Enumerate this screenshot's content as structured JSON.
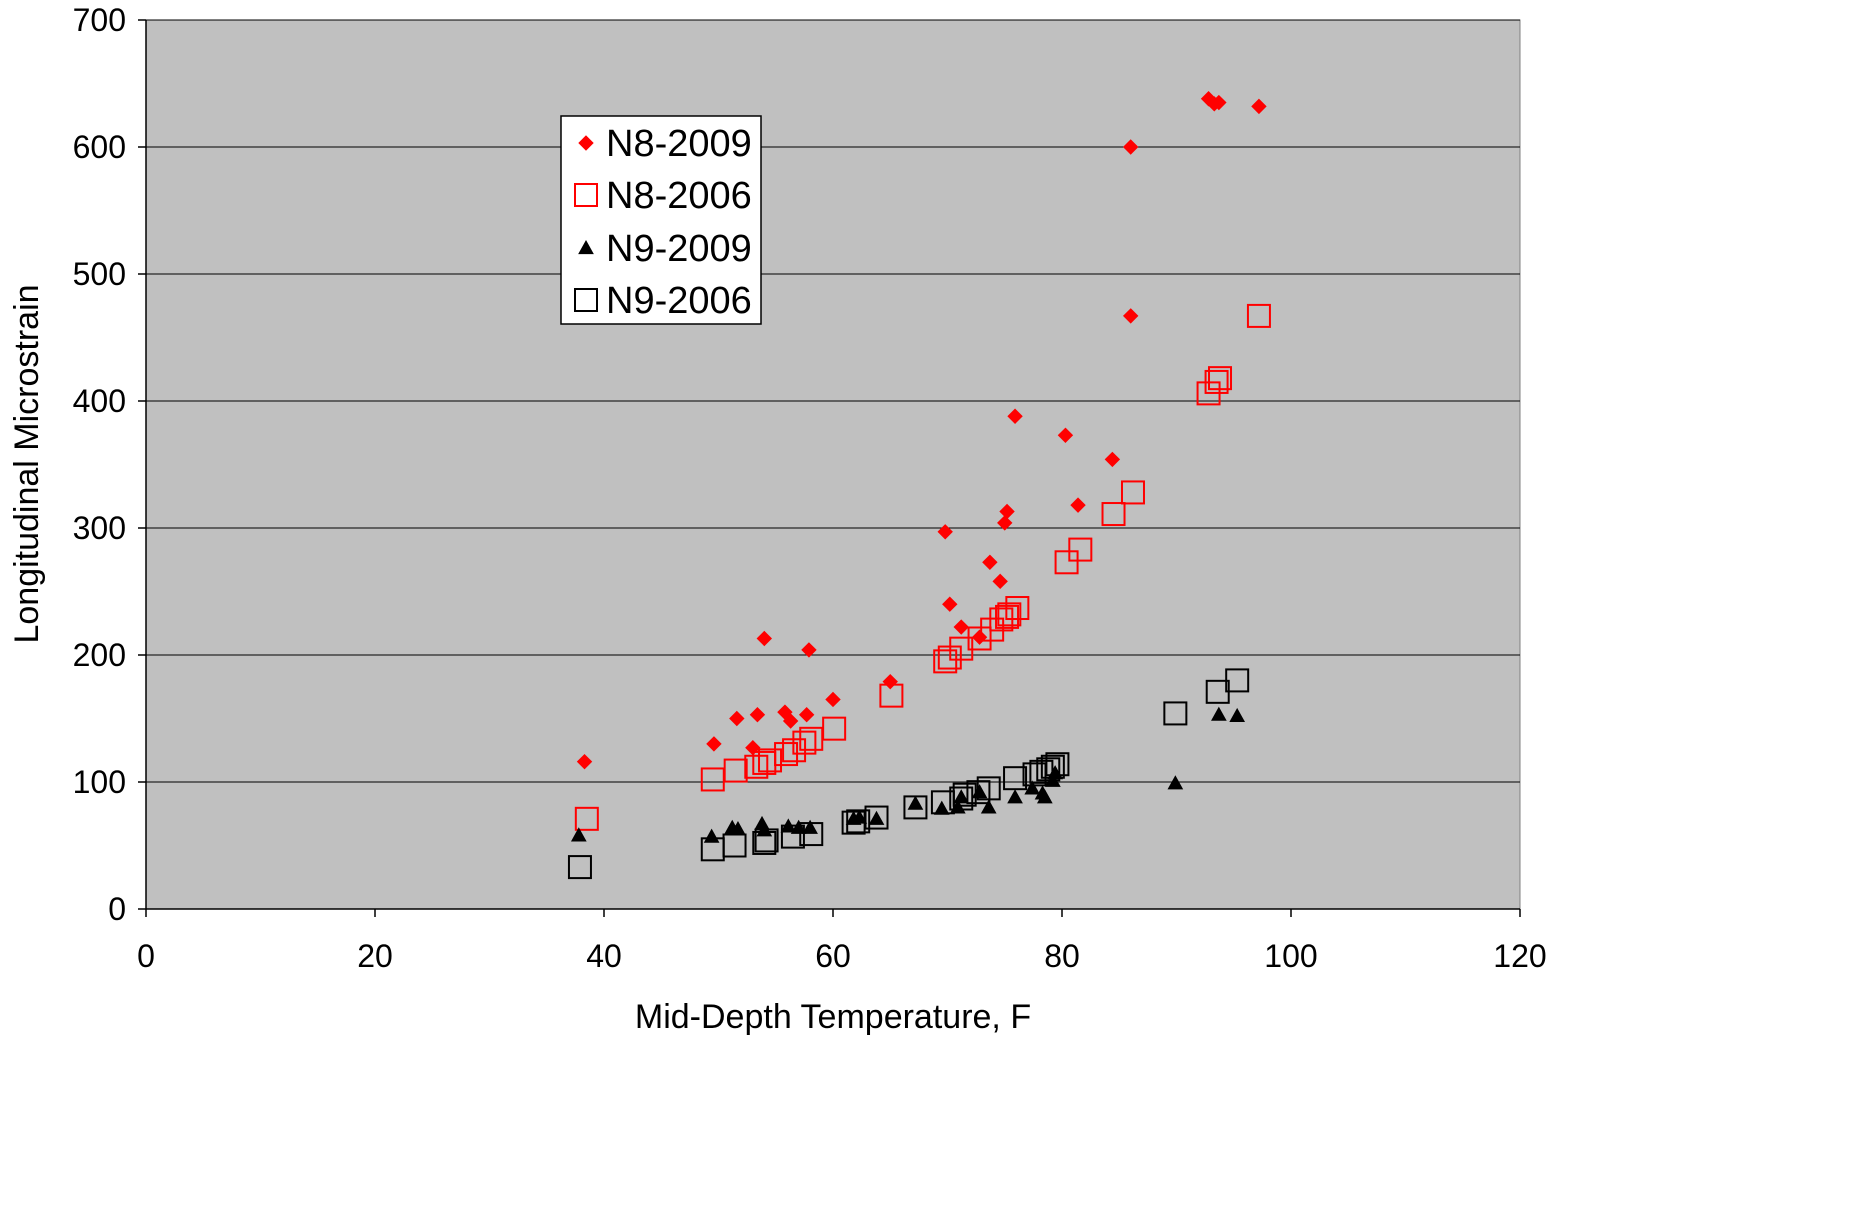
{
  "chart_data": {
    "type": "scatter",
    "title": "",
    "xlabel": "Mid-Depth Temperature, F",
    "ylabel": "Longitudinal Microstrain",
    "xlim": [
      0,
      120
    ],
    "ylim": [
      0,
      700
    ],
    "x_ticks": [
      0,
      20,
      40,
      60,
      80,
      100,
      120
    ],
    "y_ticks": [
      0,
      100,
      200,
      300,
      400,
      500,
      600,
      700
    ],
    "grid": "horizontal",
    "plot_background": "#c0c0c0",
    "legend_position": "upper-left-center",
    "series": [
      {
        "name": "N8-2009",
        "marker": "diamond",
        "color": "#ff0000",
        "x": [
          38.3,
          49.6,
          51.6,
          53.0,
          53.4,
          54.0,
          55.8,
          56.3,
          57.7,
          57.9,
          60.0,
          65.0,
          69.8,
          70.2,
          71.2,
          72.8,
          73.7,
          74.6,
          75.0,
          75.2,
          75.9,
          80.3,
          81.4,
          84.4,
          86.0,
          86.0,
          92.8,
          93.3,
          93.7,
          97.2
        ],
        "y": [
          116,
          130,
          150,
          127,
          153,
          213,
          155,
          148,
          153,
          204,
          165,
          179,
          297,
          240,
          222,
          214,
          273,
          258,
          304,
          313,
          388,
          373,
          318,
          354,
          467,
          600,
          638,
          634,
          635,
          632
        ]
      },
      {
        "name": "N8-2006",
        "marker": "open-square",
        "color": "#ff0000",
        "x": [
          38.5,
          49.5,
          51.5,
          53.3,
          54.0,
          54.5,
          55.9,
          56.6,
          57.5,
          58.1,
          60.1,
          65.1,
          69.8,
          70.2,
          71.2,
          72.8,
          73.9,
          74.7,
          75.2,
          75.4,
          76.1,
          80.4,
          81.6,
          84.5,
          86.2,
          92.8,
          93.5,
          93.8,
          97.2
        ],
        "y": [
          71,
          102,
          109,
          112,
          115,
          117,
          122,
          125,
          131,
          134,
          142,
          168,
          195,
          198,
          205,
          213,
          220,
          228,
          230,
          232,
          237,
          273,
          283,
          311,
          328,
          406,
          415,
          418,
          467
        ]
      },
      {
        "name": "N9-2009",
        "marker": "triangle",
        "color": "#000000",
        "x": [
          37.8,
          49.4,
          51.2,
          51.7,
          53.8,
          54.0,
          56.1,
          57.0,
          58.0,
          61.8,
          62.3,
          63.8,
          67.2,
          69.5,
          70.9,
          71.2,
          72.8,
          73.6,
          75.9,
          77.4,
          78.3,
          78.5,
          79.2,
          79.4,
          89.9,
          93.7,
          95.3
        ],
        "y": [
          58,
          57,
          64,
          63,
          67,
          62,
          65,
          64,
          64,
          71,
          72,
          71,
          83,
          79,
          80,
          88,
          92,
          80,
          88,
          95,
          91,
          88,
          101,
          107,
          99,
          153,
          152
        ]
      },
      {
        "name": "N9-2006",
        "marker": "open-square",
        "color": "#000000",
        "x": [
          37.9,
          49.5,
          51.4,
          54.0,
          54.2,
          56.5,
          58.1,
          61.8,
          62.2,
          63.8,
          67.2,
          69.6,
          71.2,
          71.5,
          72.7,
          73.6,
          75.9,
          77.6,
          78.2,
          78.8,
          79.2,
          79.6,
          89.9,
          93.6,
          95.3
        ],
        "y": [
          33,
          47,
          50,
          52,
          54,
          57,
          59,
          68,
          69,
          72,
          80,
          84,
          87,
          90,
          92,
          95,
          103,
          106,
          108,
          110,
          112,
          114,
          154,
          171,
          180
        ]
      }
    ]
  }
}
